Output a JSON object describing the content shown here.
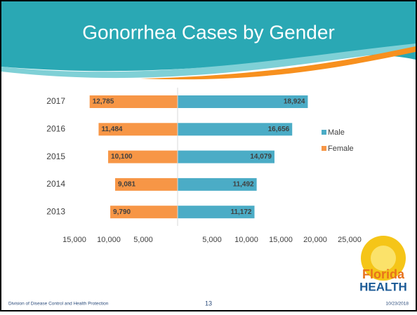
{
  "chart_data": {
    "type": "butterfly-bar",
    "title": "Gonorrhea Cases by Gender",
    "categories": [
      "2017",
      "2016",
      "2015",
      "2014",
      "2013"
    ],
    "series": [
      {
        "name": "Male",
        "color": "#4bacc6",
        "side": "right",
        "values": [
          18924,
          16656,
          14079,
          11492,
          11172
        ],
        "value_labels": [
          "18,924",
          "16,656",
          "14,079",
          "11,492",
          "11,172"
        ]
      },
      {
        "name": "Female",
        "color": "#f79646",
        "side": "left",
        "values": [
          12785,
          11484,
          10100,
          9081,
          9790
        ],
        "value_labels": [
          "12,785",
          "11,484",
          "10,100",
          "9,081",
          "9,790"
        ]
      }
    ],
    "xlim_left": [
      0,
      15000
    ],
    "xticks_left": [
      {
        "value": 15000,
        "label": "15,000"
      },
      {
        "value": 10000,
        "label": "10,000"
      },
      {
        "value": 5000,
        "label": "5,000"
      }
    ],
    "xlim_right": [
      0,
      25000
    ],
    "xticks_right": [
      {
        "value": 5000,
        "label": "5,000"
      },
      {
        "value": 10000,
        "label": "10,000"
      },
      {
        "value": 15000,
        "label": "15,000"
      },
      {
        "value": 20000,
        "label": "20,000"
      },
      {
        "value": 25000,
        "label": "25,000"
      }
    ],
    "legend": "right"
  },
  "footer": {
    "left": "Division of Disease Control and Health Protection",
    "page": "13",
    "date": "10/23/2018"
  },
  "logo": {
    "line1": "Florida",
    "line2": "HEALTH"
  }
}
